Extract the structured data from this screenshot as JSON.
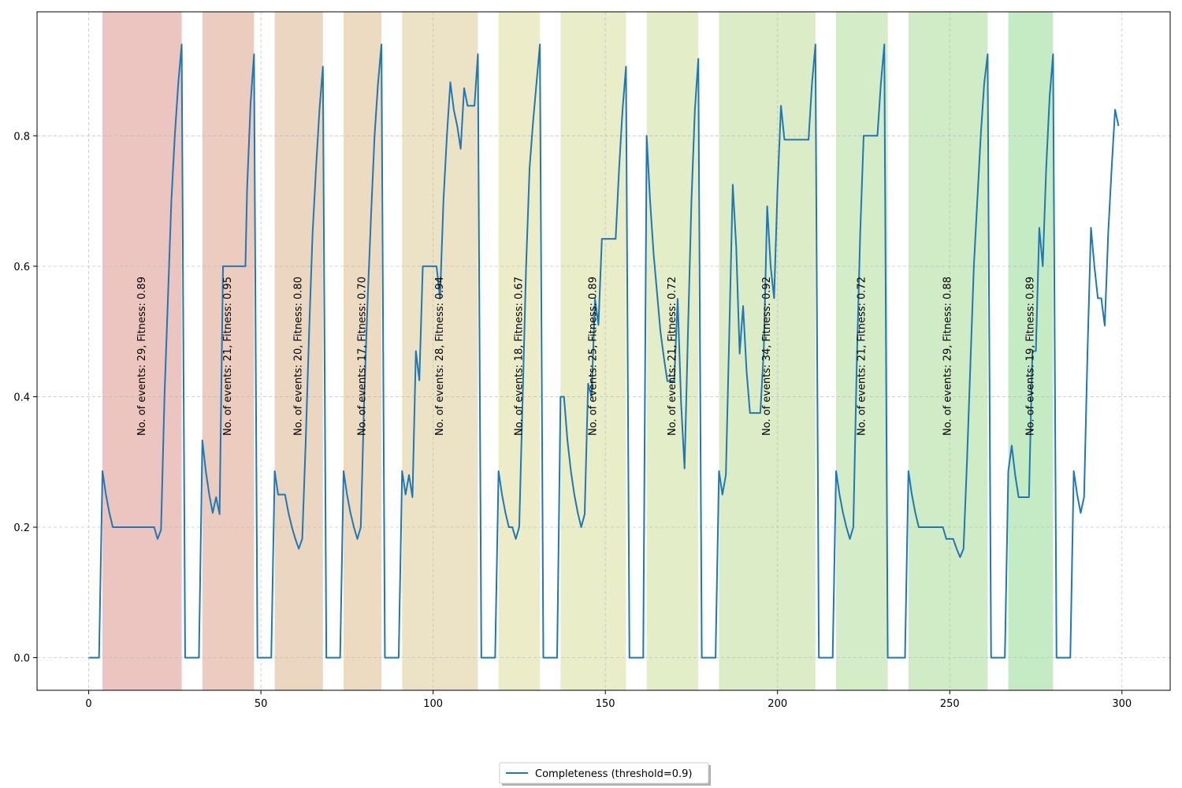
{
  "chart_data": {
    "type": "line",
    "title": "",
    "xlabel": "",
    "ylabel": "",
    "xlim": [
      -15,
      314
    ],
    "ylim": [
      -0.05,
      0.99
    ],
    "xticks": [
      0,
      50,
      100,
      150,
      200,
      250,
      300
    ],
    "yticks": [
      0.0,
      0.2,
      0.4,
      0.6,
      0.8
    ],
    "grid": true,
    "legend_position": "bottom-center",
    "series": [
      {
        "name": "Completeness (threshold=0.9)",
        "color": "#1f77b4",
        "points": [
          [
            0,
            0
          ],
          [
            3,
            0
          ],
          [
            4,
            0.286
          ],
          [
            5,
            0.25
          ],
          [
            6,
            0.222
          ],
          [
            7,
            0.2
          ],
          [
            8,
            0.2
          ],
          [
            10,
            0.2
          ],
          [
            12,
            0.2
          ],
          [
            14,
            0.2
          ],
          [
            16,
            0.2
          ],
          [
            18,
            0.2
          ],
          [
            19,
            0.2
          ],
          [
            20,
            0.182
          ],
          [
            21,
            0.196
          ],
          [
            22,
            0.4
          ],
          [
            23,
            0.55
          ],
          [
            24,
            0.7
          ],
          [
            25,
            0.8
          ],
          [
            26,
            0.88
          ],
          [
            27,
            0.94
          ],
          [
            28,
            0
          ],
          [
            32,
            0
          ],
          [
            33,
            0.333
          ],
          [
            34,
            0.286
          ],
          [
            35,
            0.25
          ],
          [
            36,
            0.222
          ],
          [
            37,
            0.246
          ],
          [
            38,
            0.22
          ],
          [
            39,
            0.6
          ],
          [
            41,
            0.6
          ],
          [
            43,
            0.6
          ],
          [
            45,
            0.6
          ],
          [
            45.5,
            0.6
          ],
          [
            46,
            0.72
          ],
          [
            47,
            0.85
          ],
          [
            48,
            0.925
          ],
          [
            49,
            0
          ],
          [
            53,
            0
          ],
          [
            54,
            0.286
          ],
          [
            55,
            0.25
          ],
          [
            57,
            0.25
          ],
          [
            58,
            0.222
          ],
          [
            59,
            0.2
          ],
          [
            60,
            0.182
          ],
          [
            61,
            0.167
          ],
          [
            62,
            0.182
          ],
          [
            63,
            0.33
          ],
          [
            64,
            0.5
          ],
          [
            65,
            0.65
          ],
          [
            66,
            0.75
          ],
          [
            67,
            0.84
          ],
          [
            68,
            0.906
          ],
          [
            69,
            0
          ],
          [
            73,
            0
          ],
          [
            74,
            0.286
          ],
          [
            75,
            0.25
          ],
          [
            76,
            0.222
          ],
          [
            77,
            0.2
          ],
          [
            78,
            0.182
          ],
          [
            79,
            0.2
          ],
          [
            80,
            0.4
          ],
          [
            81,
            0.55
          ],
          [
            82,
            0.68
          ],
          [
            83,
            0.8
          ],
          [
            84,
            0.88
          ],
          [
            85,
            0.94
          ],
          [
            86,
            0
          ],
          [
            90,
            0
          ],
          [
            91,
            0.286
          ],
          [
            92,
            0.25
          ],
          [
            93,
            0.28
          ],
          [
            94,
            0.246
          ],
          [
            95,
            0.47
          ],
          [
            96,
            0.425
          ],
          [
            97,
            0.6
          ],
          [
            99,
            0.6
          ],
          [
            101,
            0.6
          ],
          [
            102,
            0.55
          ],
          [
            103,
            0.7
          ],
          [
            104,
            0.8
          ],
          [
            105,
            0.882
          ],
          [
            106,
            0.84
          ],
          [
            107,
            0.815
          ],
          [
            108,
            0.78
          ],
          [
            109,
            0.873
          ],
          [
            110,
            0.846
          ],
          [
            112,
            0.846
          ],
          [
            113,
            0.925
          ],
          [
            114,
            0
          ],
          [
            118,
            0
          ],
          [
            119,
            0.286
          ],
          [
            120,
            0.25
          ],
          [
            121,
            0.222
          ],
          [
            122,
            0.2
          ],
          [
            123,
            0.2
          ],
          [
            124,
            0.182
          ],
          [
            125,
            0.2
          ],
          [
            126,
            0.4
          ],
          [
            127,
            0.6
          ],
          [
            128,
            0.75
          ],
          [
            129,
            0.82
          ],
          [
            130,
            0.88
          ],
          [
            131,
            0.94
          ],
          [
            132,
            0
          ],
          [
            136,
            0
          ],
          [
            137,
            0.4
          ],
          [
            138,
            0.4
          ],
          [
            139,
            0.333
          ],
          [
            140,
            0.286
          ],
          [
            141,
            0.25
          ],
          [
            142,
            0.222
          ],
          [
            143,
            0.2
          ],
          [
            144,
            0.22
          ],
          [
            145,
            0.42
          ],
          [
            146,
            0.4
          ],
          [
            147,
            0.55
          ],
          [
            148,
            0.51
          ],
          [
            149,
            0.642
          ],
          [
            151,
            0.642
          ],
          [
            153,
            0.642
          ],
          [
            154,
            0.75
          ],
          [
            155,
            0.84
          ],
          [
            156,
            0.906
          ],
          [
            157,
            0
          ],
          [
            161,
            0
          ],
          [
            162,
            0.8
          ],
          [
            163,
            0.7
          ],
          [
            164,
            0.62
          ],
          [
            165,
            0.56
          ],
          [
            166,
            0.5
          ],
          [
            167,
            0.46
          ],
          [
            168,
            0.424
          ],
          [
            170,
            0.424
          ],
          [
            171,
            0.55
          ],
          [
            172,
            0.39
          ],
          [
            173,
            0.29
          ],
          [
            174,
            0.5
          ],
          [
            175,
            0.7
          ],
          [
            176,
            0.84
          ],
          [
            177,
            0.918
          ],
          [
            178,
            0
          ],
          [
            182,
            0
          ],
          [
            183,
            0.286
          ],
          [
            184,
            0.25
          ],
          [
            185,
            0.28
          ],
          [
            186,
            0.5
          ],
          [
            187,
            0.725
          ],
          [
            188,
            0.63
          ],
          [
            189,
            0.466
          ],
          [
            190,
            0.539
          ],
          [
            191,
            0.44
          ],
          [
            192,
            0.375
          ],
          [
            194,
            0.375
          ],
          [
            195,
            0.375
          ],
          [
            196,
            0.47
          ],
          [
            197,
            0.692
          ],
          [
            198,
            0.6
          ],
          [
            199,
            0.551
          ],
          [
            200,
            0.72
          ],
          [
            201,
            0.846
          ],
          [
            202,
            0.794
          ],
          [
            204,
            0.794
          ],
          [
            206,
            0.794
          ],
          [
            208,
            0.794
          ],
          [
            209,
            0.794
          ],
          [
            210,
            0.88
          ],
          [
            211,
            0.94
          ],
          [
            212,
            0
          ],
          [
            216,
            0
          ],
          [
            217,
            0.286
          ],
          [
            218,
            0.25
          ],
          [
            219,
            0.222
          ],
          [
            220,
            0.2
          ],
          [
            221,
            0.182
          ],
          [
            222,
            0.2
          ],
          [
            223,
            0.45
          ],
          [
            224,
            0.65
          ],
          [
            225,
            0.8
          ],
          [
            227,
            0.8
          ],
          [
            229,
            0.8
          ],
          [
            230,
            0.88
          ],
          [
            231,
            0.94
          ],
          [
            232,
            0
          ],
          [
            237,
            0
          ],
          [
            238,
            0.286
          ],
          [
            239,
            0.25
          ],
          [
            240,
            0.222
          ],
          [
            241,
            0.2
          ],
          [
            243,
            0.2
          ],
          [
            245,
            0.2
          ],
          [
            247,
            0.2
          ],
          [
            248,
            0.2
          ],
          [
            249,
            0.182
          ],
          [
            251,
            0.182
          ],
          [
            252,
            0.167
          ],
          [
            253,
            0.154
          ],
          [
            254,
            0.167
          ],
          [
            255,
            0.3
          ],
          [
            256,
            0.45
          ],
          [
            257,
            0.6
          ],
          [
            258,
            0.7
          ],
          [
            259,
            0.8
          ],
          [
            260,
            0.88
          ],
          [
            261,
            0.925
          ],
          [
            262,
            0
          ],
          [
            266,
            0
          ],
          [
            267,
            0.286
          ],
          [
            268,
            0.325
          ],
          [
            269,
            0.28
          ],
          [
            270,
            0.246
          ],
          [
            272,
            0.246
          ],
          [
            273,
            0.246
          ],
          [
            274,
            0.47
          ],
          [
            275,
            0.47
          ],
          [
            276,
            0.659
          ],
          [
            277,
            0.6
          ],
          [
            278,
            0.75
          ],
          [
            279,
            0.86
          ],
          [
            280,
            0.925
          ],
          [
            281,
            0
          ],
          [
            285,
            0
          ],
          [
            286,
            0.286
          ],
          [
            287,
            0.25
          ],
          [
            288,
            0.222
          ],
          [
            289,
            0.246
          ],
          [
            290,
            0.47
          ],
          [
            291,
            0.659
          ],
          [
            292,
            0.6
          ],
          [
            293,
            0.551
          ],
          [
            294,
            0.551
          ],
          [
            295,
            0.509
          ],
          [
            296,
            0.65
          ],
          [
            297,
            0.75
          ],
          [
            298,
            0.84
          ],
          [
            299,
            0.815
          ]
        ]
      }
    ],
    "shaded_regions": [
      {
        "x_start": 4,
        "x_end": 27,
        "color": "#d98b83",
        "label": "No. of events: 29, Fitness: 0.89"
      },
      {
        "x_start": 33,
        "x_end": 48,
        "color": "#da9a80",
        "label": "No. of events: 21, Fitness: 0.95"
      },
      {
        "x_start": 54,
        "x_end": 68,
        "color": "#d8ad85",
        "label": "No. of events: 20, Fitness: 0.80"
      },
      {
        "x_start": 74,
        "x_end": 85,
        "color": "#d9b683",
        "label": "No. of events: 17, Fitness: 0.70"
      },
      {
        "x_start": 91,
        "x_end": 113,
        "color": "#d9c88f",
        "label": "No. of events: 28, Fitness: 0.94"
      },
      {
        "x_start": 119,
        "x_end": 131,
        "color": "#dadb91",
        "label": "No. of events: 18, Fitness: 0.67"
      },
      {
        "x_start": 137,
        "x_end": 156,
        "color": "#d4dc92",
        "label": "No. of events: 25, Fitness: 0.89"
      },
      {
        "x_start": 162,
        "x_end": 177,
        "color": "#c8dc90",
        "label": "No. of events: 21, Fitness: 0.72"
      },
      {
        "x_start": 183,
        "x_end": 211,
        "color": "#b8da90",
        "label": "No. of events: 34, Fitness: 0.92"
      },
      {
        "x_start": 217,
        "x_end": 232,
        "color": "#acd992",
        "label": "No. of events: 21, Fitness: 0.72"
      },
      {
        "x_start": 238,
        "x_end": 261,
        "color": "#a1d98e",
        "label": "No. of events: 29, Fitness: 0.88"
      },
      {
        "x_start": 267,
        "x_end": 280,
        "color": "#8cd88b",
        "label": "No. of events: 19, Fitness: 0.89"
      }
    ]
  }
}
